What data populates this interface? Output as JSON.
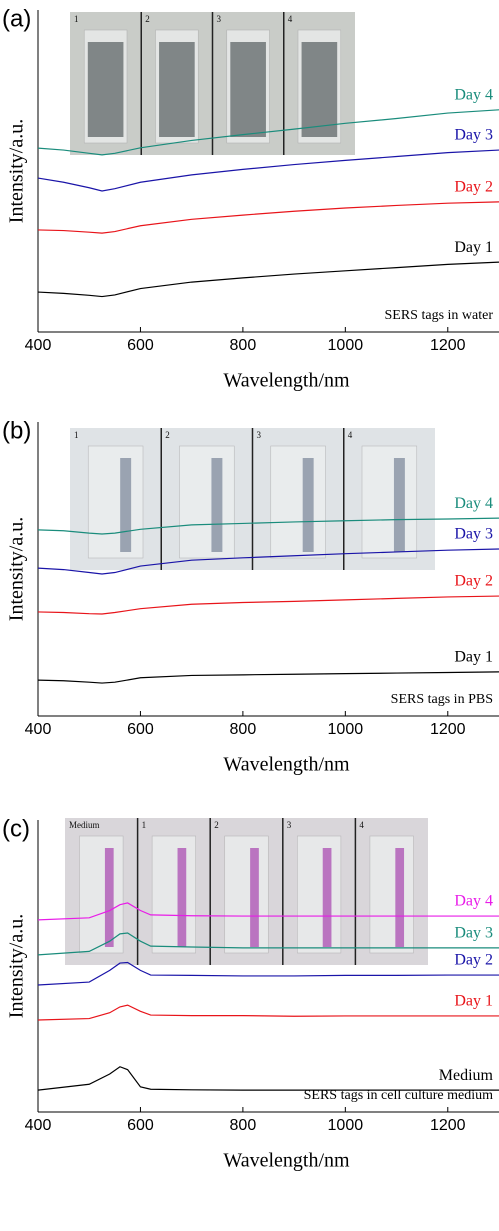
{
  "chart_data": [
    {
      "type": "line",
      "panel_label": "(a)",
      "x_label": "Wavelength/nm",
      "y_label": "Intensity/a.u.",
      "annotation": "SERS tags in water",
      "inset_labels": [
        "1",
        "2",
        "3",
        "4"
      ],
      "x": [
        400,
        450,
        500,
        525,
        550,
        600,
        700,
        800,
        900,
        1000,
        1100,
        1200,
        1300
      ],
      "xlim": [
        400,
        1300
      ],
      "xticks": [
        400,
        600,
        800,
        1000,
        1200
      ],
      "ylim": [
        0,
        10
      ],
      "series": [
        {
          "name": "Day 1",
          "color": "#000000",
          "values": [
            1.24,
            1.2,
            1.14,
            1.1,
            1.15,
            1.35,
            1.55,
            1.68,
            1.8,
            1.9,
            2.0,
            2.1,
            2.17
          ]
        },
        {
          "name": "Day 2",
          "color": "#e8141a",
          "values": [
            3.17,
            3.15,
            3.1,
            3.07,
            3.12,
            3.3,
            3.5,
            3.63,
            3.75,
            3.85,
            3.93,
            4.0,
            4.04
          ]
        },
        {
          "name": "Day 3",
          "color": "#1a14a8",
          "values": [
            4.78,
            4.65,
            4.48,
            4.38,
            4.45,
            4.65,
            4.88,
            5.05,
            5.2,
            5.33,
            5.45,
            5.57,
            5.65
          ]
        },
        {
          "name": "Day 4",
          "color": "#1a8c7c",
          "values": [
            5.71,
            5.65,
            5.55,
            5.5,
            5.55,
            5.72,
            5.95,
            6.13,
            6.3,
            6.48,
            6.63,
            6.8,
            6.9
          ]
        }
      ]
    },
    {
      "type": "line",
      "panel_label": "(b)",
      "x_label": "Wavelength/nm",
      "y_label": "Intensity/a.u.",
      "annotation": "SERS tags in PBS",
      "inset_labels": [
        "1",
        "2",
        "3",
        "4"
      ],
      "x": [
        400,
        450,
        500,
        525,
        550,
        600,
        700,
        800,
        900,
        1000,
        1100,
        1200,
        1300
      ],
      "xlim": [
        400,
        1300
      ],
      "xticks": [
        400,
        600,
        800,
        1000,
        1200
      ],
      "ylim": [
        0,
        10
      ],
      "series": [
        {
          "name": "Day 1",
          "color": "#000000",
          "values": [
            1.22,
            1.2,
            1.15,
            1.12,
            1.15,
            1.3,
            1.38,
            1.4,
            1.42,
            1.44,
            1.46,
            1.48,
            1.5
          ]
        },
        {
          "name": "Day 2",
          "color": "#e8141a",
          "values": [
            3.54,
            3.52,
            3.48,
            3.47,
            3.52,
            3.65,
            3.8,
            3.86,
            3.9,
            3.95,
            4.0,
            4.05,
            4.08
          ]
        },
        {
          "name": "Day 3",
          "color": "#1a14a8",
          "values": [
            5.03,
            4.98,
            4.88,
            4.83,
            4.88,
            5.1,
            5.3,
            5.38,
            5.45,
            5.52,
            5.58,
            5.64,
            5.68
          ]
        },
        {
          "name": "Day 4",
          "color": "#1a8c7c",
          "values": [
            6.33,
            6.3,
            6.22,
            6.19,
            6.22,
            6.35,
            6.5,
            6.55,
            6.6,
            6.64,
            6.68,
            6.7,
            6.73
          ]
        }
      ]
    },
    {
      "type": "line",
      "panel_label": "(c)",
      "x_label": "Wavelength/nm",
      "y_label": "Intensity/a.u.",
      "annotation": "SERS tags in cell culture medium",
      "inset_labels": [
        "Medium",
        "1",
        "2",
        "3",
        "4"
      ],
      "x": [
        400,
        500,
        540,
        560,
        575,
        600,
        620,
        700,
        800,
        900,
        1000,
        1100,
        1200,
        1300
      ],
      "xlim": [
        400,
        1300
      ],
      "xticks": [
        400,
        600,
        800,
        1000,
        1200
      ],
      "ylim": [
        0,
        10
      ],
      "series": [
        {
          "name": "Medium",
          "color": "#000000",
          "values": [
            0.75,
            0.95,
            1.3,
            1.55,
            1.45,
            0.86,
            0.78,
            0.76,
            0.75,
            0.75,
            0.75,
            0.75,
            0.75,
            0.75
          ]
        },
        {
          "name": "Day 1",
          "color": "#e8141a",
          "values": [
            3.15,
            3.2,
            3.4,
            3.6,
            3.66,
            3.45,
            3.32,
            3.3,
            3.3,
            3.28,
            3.29,
            3.29,
            3.29,
            3.29
          ]
        },
        {
          "name": "Day 2",
          "color": "#1a14a8",
          "values": [
            4.35,
            4.45,
            4.85,
            5.1,
            5.12,
            4.85,
            4.69,
            4.68,
            4.66,
            4.66,
            4.68,
            4.68,
            4.69,
            4.69
          ]
        },
        {
          "name": "Day 3",
          "color": "#1a8c7c",
          "values": [
            5.38,
            5.5,
            5.85,
            6.1,
            6.13,
            5.85,
            5.68,
            5.65,
            5.62,
            5.62,
            5.62,
            5.62,
            5.62,
            5.62
          ]
        },
        {
          "name": "Day 4",
          "color": "#e81ce8",
          "values": [
            6.58,
            6.65,
            6.9,
            7.1,
            7.16,
            6.9,
            6.75,
            6.72,
            6.71,
            6.71,
            6.71,
            6.71,
            6.71,
            6.71
          ]
        }
      ]
    }
  ]
}
